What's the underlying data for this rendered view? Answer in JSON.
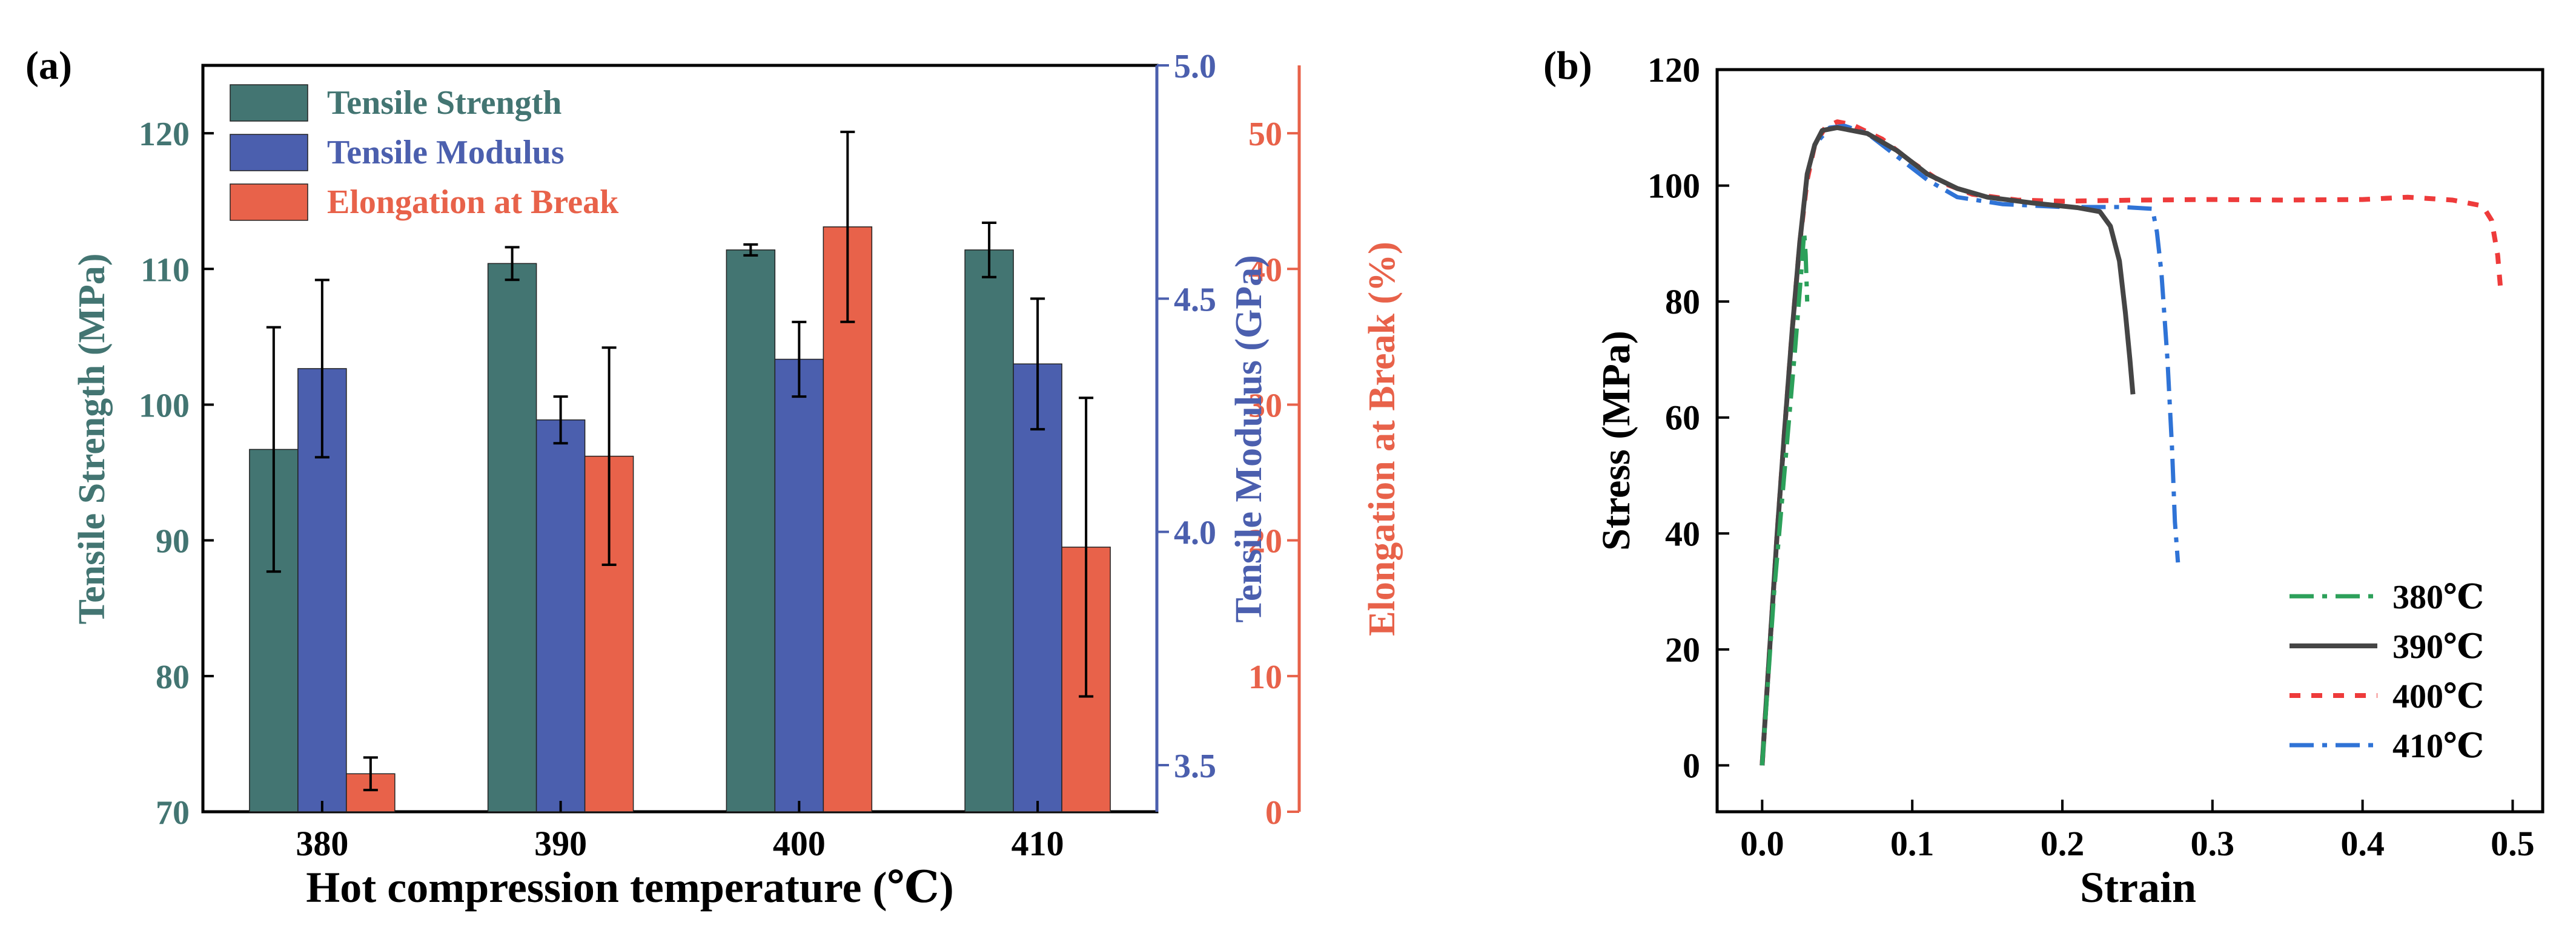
{
  "colors": {
    "tensile_strength": "#437572",
    "tensile_modulus": "#4b5fae",
    "elongation": "#e8624a",
    "axis_black": "#000000",
    "curve_380": "#2ca05a",
    "curve_390": "#454545",
    "curve_400": "#ee3b3b",
    "curve_410": "#2f73d6"
  },
  "chart_data": [
    {
      "panel_label": "(a)",
      "type": "bar",
      "xlabel": "Hot compression temperature (℃)",
      "categories": [
        "380",
        "390",
        "400",
        "410"
      ],
      "axes": {
        "strength": {
          "label": "Tensile Strength (MPa)",
          "ylim": [
            70,
            125
          ],
          "ticks": [
            "70",
            "80",
            "90",
            "100",
            "110",
            "120"
          ]
        },
        "modulus": {
          "label": "Tensile Modulus (GPa)",
          "ylim": [
            3.4,
            5.0
          ],
          "ticks": [
            "3.5",
            "4.0",
            "4.5",
            "5.0"
          ]
        },
        "elongation": {
          "label": "Elongation at Break (%)",
          "ylim": [
            0,
            55
          ],
          "ticks": [
            "0",
            "10",
            "20",
            "30",
            "40",
            "50"
          ]
        }
      },
      "series": [
        {
          "name": "Tensile Strength",
          "axis": "strength",
          "values": [
            96.7,
            110.4,
            111.4,
            111.4
          ],
          "errors": [
            9.0,
            1.2,
            0.4,
            2.0
          ]
        },
        {
          "name": "Tensile Modulus",
          "axis": "modulus",
          "values": [
            4.35,
            4.24,
            4.37,
            4.36
          ],
          "errors": [
            0.19,
            0.05,
            0.08,
            0.14
          ]
        },
        {
          "name": "Elongation at Break",
          "axis": "elongation",
          "values": [
            2.8,
            26.2,
            43.1,
            19.5
          ],
          "errors": [
            1.2,
            8.0,
            7.0,
            11.0
          ]
        }
      ],
      "legend": [
        "Tensile Strength",
        "Tensile Modulus",
        "Elongation at Break"
      ],
      "legend_position": "top-left"
    },
    {
      "panel_label": "(b)",
      "type": "line",
      "xlabel": "Strain",
      "ylabel": "Stress (MPa)",
      "xlim": [
        -0.03,
        0.52
      ],
      "ylim": [
        -8,
        120
      ],
      "xticks": [
        "0.0",
        "0.1",
        "0.2",
        "0.3",
        "0.4",
        "0.5"
      ],
      "yticks": [
        "0",
        "20",
        "40",
        "60",
        "80",
        "100",
        "120"
      ],
      "legend_position": "bottom-right",
      "series": [
        {
          "name": "380℃",
          "points": [
            [
              0,
              0
            ],
            [
              0.004,
              15
            ],
            [
              0.008,
              30
            ],
            [
              0.013,
              45
            ],
            [
              0.018,
              60
            ],
            [
              0.022,
              72
            ],
            [
              0.026,
              85
            ],
            [
              0.028,
              92
            ],
            [
              0.029,
              88
            ],
            [
              0.03,
              80
            ]
          ]
        },
        {
          "name": "390℃",
          "points": [
            [
              0,
              0
            ],
            [
              0.005,
              20
            ],
            [
              0.01,
              40
            ],
            [
              0.015,
              58
            ],
            [
              0.02,
              75
            ],
            [
              0.025,
              90
            ],
            [
              0.03,
              102
            ],
            [
              0.035,
              107
            ],
            [
              0.04,
              109.5
            ],
            [
              0.05,
              110
            ],
            [
              0.07,
              109
            ],
            [
              0.09,
              106
            ],
            [
              0.11,
              102
            ],
            [
              0.13,
              99.5
            ],
            [
              0.15,
              98
            ],
            [
              0.18,
              97
            ],
            [
              0.21,
              96.2
            ],
            [
              0.225,
              95.5
            ],
            [
              0.232,
              93
            ],
            [
              0.238,
              87
            ],
            [
              0.242,
              78
            ],
            [
              0.245,
              70
            ],
            [
              0.247,
              64
            ]
          ]
        },
        {
          "name": "400℃",
          "points": [
            [
              0,
              0
            ],
            [
              0.005,
              20
            ],
            [
              0.01,
              40
            ],
            [
              0.015,
              58
            ],
            [
              0.02,
              75
            ],
            [
              0.025,
              90
            ],
            [
              0.03,
              101
            ],
            [
              0.035,
              107
            ],
            [
              0.042,
              110
            ],
            [
              0.05,
              111
            ],
            [
              0.06,
              110.5
            ],
            [
              0.08,
              108
            ],
            [
              0.1,
              104
            ],
            [
              0.12,
              100.5
            ],
            [
              0.14,
              98.5
            ],
            [
              0.17,
              97.5
            ],
            [
              0.2,
              97.3
            ],
            [
              0.25,
              97.5
            ],
            [
              0.3,
              97.6
            ],
            [
              0.35,
              97.5
            ],
            [
              0.4,
              97.6
            ],
            [
              0.43,
              98
            ],
            [
              0.46,
              97.5
            ],
            [
              0.48,
              96.5
            ],
            [
              0.486,
              94
            ],
            [
              0.49,
              88
            ],
            [
              0.492,
              82
            ]
          ]
        },
        {
          "name": "410℃",
          "points": [
            [
              0,
              0
            ],
            [
              0.005,
              20
            ],
            [
              0.01,
              40
            ],
            [
              0.015,
              58
            ],
            [
              0.02,
              75
            ],
            [
              0.025,
              90
            ],
            [
              0.03,
              102
            ],
            [
              0.035,
              107
            ],
            [
              0.045,
              110
            ],
            [
              0.055,
              110.3
            ],
            [
              0.07,
              109
            ],
            [
              0.09,
              105
            ],
            [
              0.11,
              101
            ],
            [
              0.13,
              98
            ],
            [
              0.16,
              96.8
            ],
            [
              0.2,
              96.3
            ],
            [
              0.24,
              96.3
            ],
            [
              0.26,
              96
            ],
            [
              0.263,
              92
            ],
            [
              0.266,
              85
            ],
            [
              0.27,
              70
            ],
            [
              0.273,
              55
            ],
            [
              0.275,
              42
            ],
            [
              0.277,
              35
            ]
          ]
        }
      ]
    }
  ]
}
